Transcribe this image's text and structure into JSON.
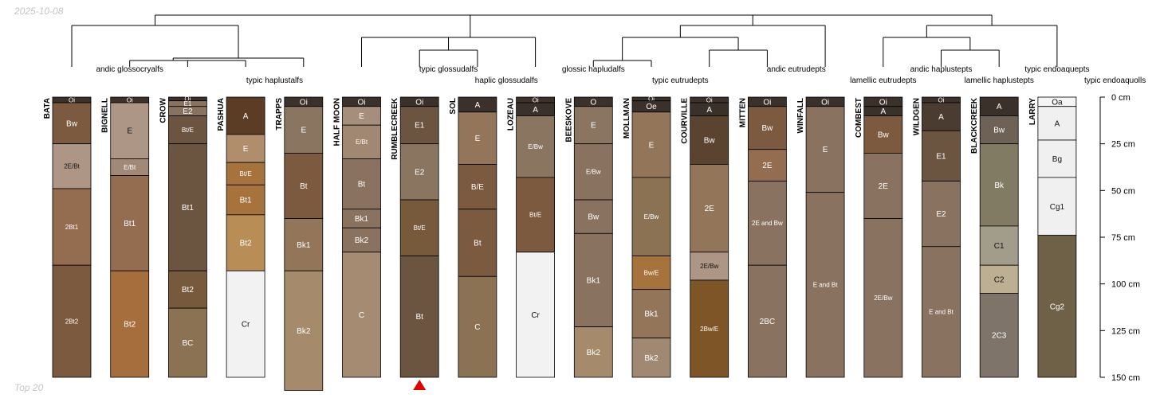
{
  "date_label": "2025-10-08",
  "footer_label": "Top 20",
  "axis": {
    "unit": "cm",
    "max_depth": 150,
    "ticks": [
      {
        "depth": 0,
        "label": "0 cm"
      },
      {
        "depth": 25,
        "label": "25 cm"
      },
      {
        "depth": 50,
        "label": "50 cm"
      },
      {
        "depth": 75,
        "label": "75 cm"
      },
      {
        "depth": 100,
        "label": "100 cm"
      },
      {
        "depth": 125,
        "label": "125 cm"
      },
      {
        "depth": 150,
        "label": "150 cm"
      }
    ]
  },
  "taxa_labels": [
    {
      "text": "andic glossocryalfs",
      "row": "low",
      "group": [
        1
      ]
    },
    {
      "text": "typic haplustalfs",
      "row": "high",
      "group": [
        2,
        3,
        4,
        5
      ]
    },
    {
      "text": "typic glossudalfs",
      "row": "low",
      "group": [
        6,
        7
      ]
    },
    {
      "text": "haplic glossudalfs",
      "row": "high",
      "group": [
        7,
        8
      ]
    },
    {
      "text": "glossic hapludalfs",
      "row": "low",
      "group": [
        9
      ]
    },
    {
      "text": "typic eutrudepts",
      "row": "high",
      "group": [
        10,
        11
      ]
    },
    {
      "text": "andic eutrudepts",
      "row": "low",
      "group": [
        12,
        13
      ]
    },
    {
      "text": "lamellic eutrudepts",
      "row": "high",
      "group": [
        14
      ]
    },
    {
      "text": "andic haplustepts",
      "row": "low",
      "group": [
        15
      ]
    },
    {
      "text": "lamellic haplustepts",
      "row": "high",
      "group": [
        16
      ]
    },
    {
      "text": "typic endoaquepts",
      "row": "low",
      "group": [
        17
      ]
    },
    {
      "text": "typic endoaquolls",
      "row": "high",
      "group": [
        18
      ]
    }
  ],
  "marker": {
    "profile": "RUMBLECREEK",
    "color": "#e00000"
  },
  "profiles": [
    {
      "name": "BATA",
      "horizons": [
        {
          "name": "Oi",
          "top": 0,
          "bottom": 3,
          "color": "#3a312b"
        },
        {
          "name": "Bw",
          "top": 3,
          "bottom": 25,
          "color": "#7b5a3f"
        },
        {
          "name": "2E/Bt",
          "top": 25,
          "bottom": 49,
          "color": "#ad9685"
        },
        {
          "name": "2Bt1",
          "top": 49,
          "bottom": 90,
          "color": "#946c50"
        },
        {
          "name": "2Bt2",
          "top": 90,
          "bottom": 150,
          "color": "#7b5a3f"
        }
      ]
    },
    {
      "name": "BIGNELL",
      "horizons": [
        {
          "name": "Oi",
          "top": 0,
          "bottom": 3,
          "color": "#3a312b"
        },
        {
          "name": "E",
          "top": 3,
          "bottom": 33,
          "color": "#ad9685"
        },
        {
          "name": "E/Bt",
          "top": 33,
          "bottom": 42,
          "color": "#a28877"
        },
        {
          "name": "Bt1",
          "top": 42,
          "bottom": 93,
          "color": "#946c50"
        },
        {
          "name": "Bt2",
          "top": 93,
          "bottom": 150,
          "color": "#a66d3d"
        }
      ]
    },
    {
      "name": "CROW",
      "horizons": [
        {
          "name": "Oi",
          "top": 0,
          "bottom": 2,
          "color": "#3a312b"
        },
        {
          "name": "E1",
          "top": 2,
          "bottom": 5,
          "color": "#8a7260"
        },
        {
          "name": "E2",
          "top": 5,
          "bottom": 10,
          "color": "#8a7260"
        },
        {
          "name": "Bt/E",
          "top": 10,
          "bottom": 25,
          "color": "#6c5540"
        },
        {
          "name": "Bt1",
          "top": 25,
          "bottom": 93,
          "color": "#6c5540"
        },
        {
          "name": "Bt2",
          "top": 93,
          "bottom": 113,
          "color": "#765a3b"
        },
        {
          "name": "BC",
          "top": 113,
          "bottom": 150,
          "color": "#8a7253"
        }
      ]
    },
    {
      "name": "PASHUA",
      "horizons": [
        {
          "name": "A",
          "top": 0,
          "bottom": 20,
          "color": "#5a3d24"
        },
        {
          "name": "E",
          "top": 20,
          "bottom": 35,
          "color": "#b08e6c"
        },
        {
          "name": "Bt/E",
          "top": 35,
          "bottom": 47,
          "color": "#a6733c"
        },
        {
          "name": "Bt1",
          "top": 47,
          "bottom": 63,
          "color": "#a6733c"
        },
        {
          "name": "Bt2",
          "top": 63,
          "bottom": 93,
          "color": "#b88d56"
        },
        {
          "name": "Cr",
          "top": 93,
          "bottom": 150,
          "color": "#f2f2f2"
        }
      ]
    },
    {
      "name": "TRAPPS",
      "horizons": [
        {
          "name": "Oi",
          "top": 0,
          "bottom": 5,
          "color": "#3a312b"
        },
        {
          "name": "E",
          "top": 5,
          "bottom": 30,
          "color": "#8a7560"
        },
        {
          "name": "Bt",
          "top": 30,
          "bottom": 65,
          "color": "#7b5a3f"
        },
        {
          "name": "Bk1",
          "top": 65,
          "bottom": 93,
          "color": "#937659"
        },
        {
          "name": "Bk2",
          "top": 93,
          "bottom": 157,
          "color": "#a58b6c"
        }
      ]
    },
    {
      "name": "HALF MOON",
      "horizons": [
        {
          "name": "Oi",
          "top": 0,
          "bottom": 5,
          "color": "#3a312b"
        },
        {
          "name": "E",
          "top": 5,
          "bottom": 15,
          "color": "#a58f7c"
        },
        {
          "name": "E/Bt",
          "top": 15,
          "bottom": 33,
          "color": "#a08872"
        },
        {
          "name": "Bt",
          "top": 33,
          "bottom": 60,
          "color": "#8a7260"
        },
        {
          "name": "Bk1",
          "top": 60,
          "bottom": 70,
          "color": "#8a7260"
        },
        {
          "name": "Bk2",
          "top": 70,
          "bottom": 83,
          "color": "#8a7260"
        },
        {
          "name": "C",
          "top": 83,
          "bottom": 150,
          "color": "#a48b72"
        }
      ]
    },
    {
      "name": "RUMBLECREEK",
      "horizons": [
        {
          "name": "Oi",
          "top": 0,
          "bottom": 5,
          "color": "#3a312b"
        },
        {
          "name": "E1",
          "top": 5,
          "bottom": 25,
          "color": "#6c5540"
        },
        {
          "name": "E2",
          "top": 25,
          "bottom": 55,
          "color": "#8a7560"
        },
        {
          "name": "Bt/E",
          "top": 55,
          "bottom": 85,
          "color": "#765a3b"
        },
        {
          "name": "Bt",
          "top": 85,
          "bottom": 150,
          "color": "#6c5540"
        }
      ]
    },
    {
      "name": "SOL",
      "horizons": [
        {
          "name": "A",
          "top": 0,
          "bottom": 8,
          "color": "#3a312b"
        },
        {
          "name": "E",
          "top": 8,
          "bottom": 36,
          "color": "#937659"
        },
        {
          "name": "B/E",
          "top": 36,
          "bottom": 60,
          "color": "#7b5a3f"
        },
        {
          "name": "Bt",
          "top": 60,
          "bottom": 96,
          "color": "#7b5a3f"
        },
        {
          "name": "C",
          "top": 96,
          "bottom": 150,
          "color": "#8a7253"
        }
      ]
    },
    {
      "name": "LOZEAU",
      "horizons": [
        {
          "name": "Oi",
          "top": 0,
          "bottom": 3,
          "color": "#3a312b"
        },
        {
          "name": "A",
          "top": 3,
          "bottom": 10,
          "color": "#3a312b"
        },
        {
          "name": "E/Bw",
          "top": 10,
          "bottom": 43,
          "color": "#8a7560"
        },
        {
          "name": "Bt/E",
          "top": 43,
          "bottom": 83,
          "color": "#7b5a3f"
        },
        {
          "name": "Cr",
          "top": 83,
          "bottom": 150,
          "color": "#f2f2f2"
        }
      ]
    },
    {
      "name": "BEESKOVE",
      "horizons": [
        {
          "name": "O",
          "top": 0,
          "bottom": 5,
          "color": "#3a312b"
        },
        {
          "name": "E",
          "top": 5,
          "bottom": 25,
          "color": "#8a7560"
        },
        {
          "name": "E/Bw",
          "top": 25,
          "bottom": 55,
          "color": "#8a7260"
        },
        {
          "name": "Bw",
          "top": 55,
          "bottom": 73,
          "color": "#8a7260"
        },
        {
          "name": "Bk1",
          "top": 73,
          "bottom": 123,
          "color": "#8a7260"
        },
        {
          "name": "Bk2",
          "top": 123,
          "bottom": 150,
          "color": "#a58b6c"
        }
      ]
    },
    {
      "name": "MOLLMAN",
      "horizons": [
        {
          "name": "Oi",
          "top": 0,
          "bottom": 2,
          "color": "#3a312b"
        },
        {
          "name": "Oe",
          "top": 2,
          "bottom": 8,
          "color": "#3a312b"
        },
        {
          "name": "E",
          "top": 8,
          "bottom": 43,
          "color": "#937659"
        },
        {
          "name": "E/Bw",
          "top": 43,
          "bottom": 85,
          "color": "#8a7253"
        },
        {
          "name": "Bw/E",
          "top": 85,
          "bottom": 103,
          "color": "#a6733c"
        },
        {
          "name": "Bk1",
          "top": 103,
          "bottom": 129,
          "color": "#937659"
        },
        {
          "name": "Bk2",
          "top": 129,
          "bottom": 150,
          "color": "#a08872"
        }
      ]
    },
    {
      "name": "COURVILLE",
      "horizons": [
        {
          "name": "Oi",
          "top": 0,
          "bottom": 3,
          "color": "#3a312b"
        },
        {
          "name": "A",
          "top": 3,
          "bottom": 10,
          "color": "#3a312b"
        },
        {
          "name": "Bw",
          "top": 10,
          "bottom": 36,
          "color": "#5a4430"
        },
        {
          "name": "2E",
          "top": 36,
          "bottom": 83,
          "color": "#937659"
        },
        {
          "name": "2E/Bw",
          "top": 83,
          "bottom": 98,
          "color": "#ad9685"
        },
        {
          "name": "2Bw/E",
          "top": 98,
          "bottom": 150,
          "color": "#7d5526"
        }
      ]
    },
    {
      "name": "MITTEN",
      "horizons": [
        {
          "name": "Oi",
          "top": 0,
          "bottom": 5,
          "color": "#3a312b"
        },
        {
          "name": "Bw",
          "top": 5,
          "bottom": 28,
          "color": "#7b5a3f"
        },
        {
          "name": "2E",
          "top": 28,
          "bottom": 45,
          "color": "#946c50"
        },
        {
          "name": "2E and Bw",
          "top": 45,
          "bottom": 90,
          "color": "#8a7260"
        },
        {
          "name": "2BC",
          "top": 90,
          "bottom": 150,
          "color": "#8a7260"
        }
      ]
    },
    {
      "name": "WINFALL",
      "horizons": [
        {
          "name": "Oi",
          "top": 0,
          "bottom": 5,
          "color": "#3a312b"
        },
        {
          "name": "E",
          "top": 5,
          "bottom": 51,
          "color": "#8a7260"
        },
        {
          "name": "E and Bt",
          "top": 51,
          "bottom": 150,
          "color": "#8a7260"
        }
      ]
    },
    {
      "name": "COMBEST",
      "horizons": [
        {
          "name": "Oi",
          "top": 0,
          "bottom": 5,
          "color": "#3a312b"
        },
        {
          "name": "A",
          "top": 5,
          "bottom": 10,
          "color": "#3a312b"
        },
        {
          "name": "Bw",
          "top": 10,
          "bottom": 30,
          "color": "#7b5a3f"
        },
        {
          "name": "2E",
          "top": 30,
          "bottom": 65,
          "color": "#8a7260"
        },
        {
          "name": "2E/Bw",
          "top": 65,
          "bottom": 150,
          "color": "#8a7260"
        }
      ]
    },
    {
      "name": "WILDGEN",
      "horizons": [
        {
          "name": "Oi",
          "top": 0,
          "bottom": 3,
          "color": "#3a312b"
        },
        {
          "name": "A",
          "top": 3,
          "bottom": 18,
          "color": "#4a3c30"
        },
        {
          "name": "E1",
          "top": 18,
          "bottom": 45,
          "color": "#6c5540"
        },
        {
          "name": "E2",
          "top": 45,
          "bottom": 80,
          "color": "#8a7260"
        },
        {
          "name": "E and Bt",
          "top": 80,
          "bottom": 150,
          "color": "#8a7260"
        }
      ]
    },
    {
      "name": "BLACKCREEK",
      "horizons": [
        {
          "name": "A",
          "top": 0,
          "bottom": 10,
          "color": "#3a312b"
        },
        {
          "name": "Bw",
          "top": 10,
          "bottom": 25,
          "color": "#6e6155"
        },
        {
          "name": "Bk",
          "top": 25,
          "bottom": 69,
          "color": "#827b64"
        },
        {
          "name": "C1",
          "top": 69,
          "bottom": 90,
          "color": "#a29c8a"
        },
        {
          "name": "C2",
          "top": 90,
          "bottom": 105,
          "color": "#bdb092"
        },
        {
          "name": "2C3",
          "top": 105,
          "bottom": 150,
          "color": "#7e7469"
        }
      ]
    },
    {
      "name": "LARRY",
      "horizons": [
        {
          "name": "Oa",
          "top": 0,
          "bottom": 5,
          "color": "#f5f5f5"
        },
        {
          "name": "A",
          "top": 5,
          "bottom": 23,
          "color": "#f0f0f0"
        },
        {
          "name": "Bg",
          "top": 23,
          "bottom": 43,
          "color": "#f0f0f0"
        },
        {
          "name": "Cg1",
          "top": 43,
          "bottom": 74,
          "color": "#f0f0f0"
        },
        {
          "name": "Cg2",
          "top": 74,
          "bottom": 150,
          "color": "#6e6148"
        }
      ]
    }
  ]
}
